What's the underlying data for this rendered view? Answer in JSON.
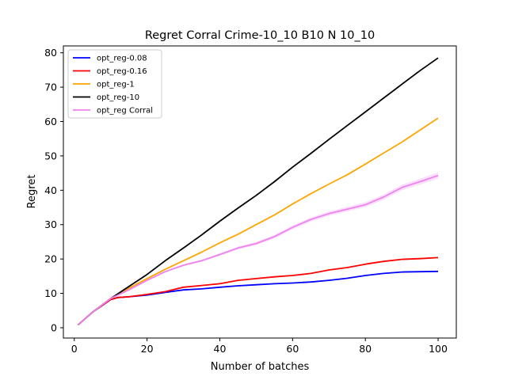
{
  "chart_data": {
    "type": "line",
    "title": "Regret Corral Crime-10_10 B10 N 10_10",
    "xlabel": "Number of batches",
    "ylabel": "Regret",
    "xlim": [
      -3,
      105
    ],
    "ylim": [
      -3,
      82
    ],
    "xticks": [
      0,
      20,
      40,
      60,
      80,
      100
    ],
    "yticks": [
      0,
      10,
      20,
      30,
      40,
      50,
      60,
      70,
      80
    ],
    "grid": false,
    "legend_position": "top-left",
    "series": [
      {
        "name": "opt_reg-0.08",
        "color": "#0000ff",
        "x": [
          1,
          5,
          10,
          12,
          15,
          20,
          25,
          30,
          35,
          40,
          45,
          50,
          55,
          60,
          65,
          70,
          75,
          80,
          85,
          90,
          95,
          100
        ],
        "values": [
          0.8,
          4.5,
          8.2,
          8.8,
          9.0,
          9.5,
          10.3,
          11.0,
          11.3,
          11.8,
          12.2,
          12.5,
          12.8,
          13.0,
          13.3,
          13.8,
          14.4,
          15.2,
          15.8,
          16.2,
          16.3,
          16.4
        ]
      },
      {
        "name": "opt_reg-0.16",
        "color": "#ff0000",
        "x": [
          1,
          5,
          10,
          12,
          15,
          20,
          25,
          30,
          35,
          40,
          45,
          50,
          55,
          60,
          65,
          70,
          75,
          80,
          85,
          90,
          95,
          100
        ],
        "values": [
          0.8,
          4.5,
          8.2,
          8.8,
          9.0,
          9.7,
          10.5,
          11.8,
          12.3,
          12.8,
          13.8,
          14.3,
          14.8,
          15.2,
          15.8,
          16.8,
          17.5,
          18.5,
          19.3,
          19.9,
          20.1,
          20.4
        ]
      },
      {
        "name": "opt_reg-1",
        "color": "#ffa500",
        "x": [
          1,
          5,
          10,
          15,
          20,
          25,
          30,
          35,
          40,
          45,
          50,
          55,
          60,
          65,
          70,
          75,
          80,
          85,
          90,
          95,
          100
        ],
        "values": [
          0.8,
          4.5,
          8.5,
          11.5,
          14.3,
          17.0,
          19.5,
          22.0,
          24.7,
          27.2,
          30.0,
          32.8,
          36.0,
          39.0,
          41.8,
          44.5,
          47.6,
          50.8,
          54.0,
          57.5,
          61.0
        ]
      },
      {
        "name": "opt_reg-10",
        "color": "#000000",
        "x": [
          1,
          5,
          10,
          15,
          20,
          25,
          30,
          35,
          40,
          45,
          50,
          55,
          60,
          65,
          70,
          75,
          80,
          85,
          90,
          95,
          100
        ],
        "values": [
          0.8,
          4.5,
          8.5,
          12.0,
          15.5,
          19.5,
          23.2,
          27.0,
          31.0,
          34.8,
          38.5,
          42.5,
          46.7,
          50.7,
          54.8,
          58.8,
          62.8,
          66.8,
          70.8,
          74.8,
          78.5
        ]
      },
      {
        "name": "opt_reg Corral",
        "color": "#ee82ee",
        "band": 0.9,
        "x": [
          1,
          5,
          10,
          15,
          20,
          25,
          30,
          35,
          40,
          45,
          50,
          55,
          60,
          65,
          70,
          75,
          80,
          85,
          90,
          95,
          100
        ],
        "values": [
          0.8,
          4.5,
          8.5,
          11.0,
          13.8,
          16.3,
          18.2,
          19.5,
          21.3,
          23.2,
          24.5,
          26.5,
          29.2,
          31.5,
          33.2,
          34.5,
          35.8,
          38.0,
          40.8,
          42.5,
          44.3
        ]
      }
    ]
  }
}
